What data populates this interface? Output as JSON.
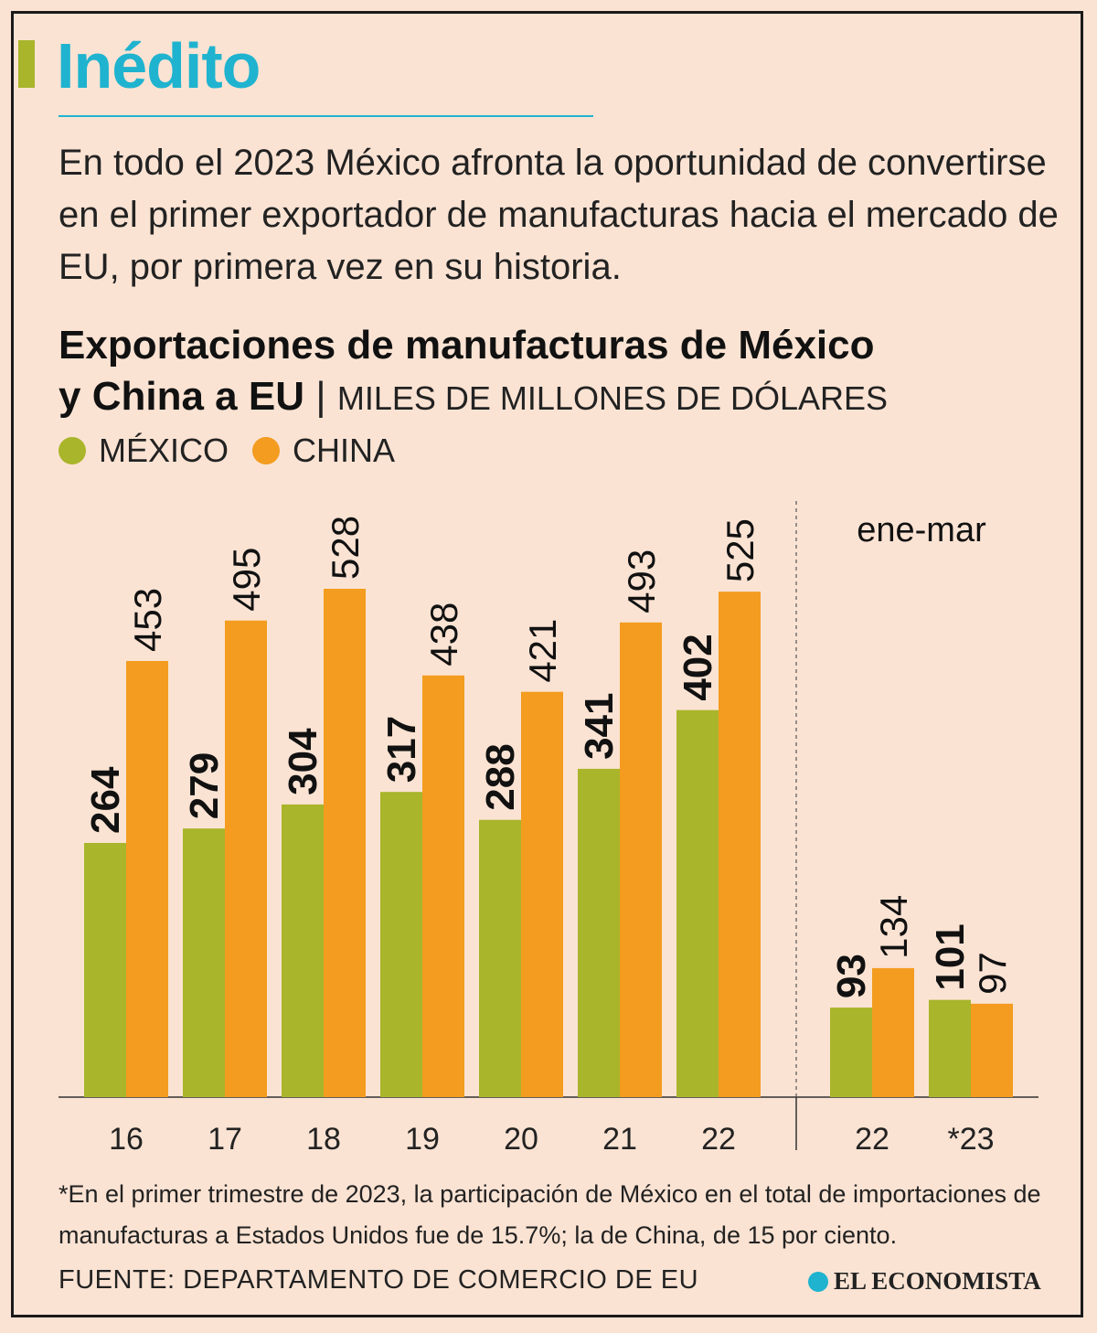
{
  "kicker": "Inédito",
  "lede": "En todo el 2023 México afronta la oportunidad de convertirse en el primer exportador de manufacturas hacia el mercado de EU, por primera vez en su historia.",
  "title_line1": "Exportaciones de manufacturas de México",
  "title_line2": "y China a EU",
  "title_sep": "|",
  "unit": "MILES DE MILLONES DE DÓLARES",
  "legend": {
    "mexico": "MÉXICO",
    "china": "CHINA"
  },
  "colors": {
    "mexico": "#a9b52a",
    "china": "#f39c1f",
    "accent": "#1fb3cf"
  },
  "footnote": "*En el primer trimestre de 2023, la participación de México en el total de importaciones de manufacturas a Estados Unidos fue de 15.7%; la de China, de 15 por ciento.",
  "source": "FUENTE: DEPARTAMENTO DE COMERCIO DE EU",
  "brand": "EL ECONOMISTA",
  "chart_data": [
    {
      "type": "bar",
      "title": "Exportaciones de manufacturas de México y China a EU",
      "ylabel": "Miles de millones de dólares",
      "categories": [
        "16",
        "17",
        "18",
        "19",
        "20",
        "21",
        "22"
      ],
      "series": [
        {
          "name": "MÉXICO",
          "values": [
            264,
            279,
            304,
            317,
            288,
            341,
            402
          ]
        },
        {
          "name": "CHINA",
          "values": [
            453,
            495,
            528,
            438,
            421,
            493,
            525
          ]
        }
      ],
      "ylim": [
        0,
        528
      ]
    },
    {
      "type": "bar",
      "title": "ene-mar",
      "categories": [
        "22",
        "*23"
      ],
      "series": [
        {
          "name": "MÉXICO",
          "values": [
            93,
            101
          ]
        },
        {
          "name": "CHINA",
          "values": [
            134,
            97
          ]
        }
      ],
      "ylim": [
        0,
        528
      ]
    }
  ]
}
